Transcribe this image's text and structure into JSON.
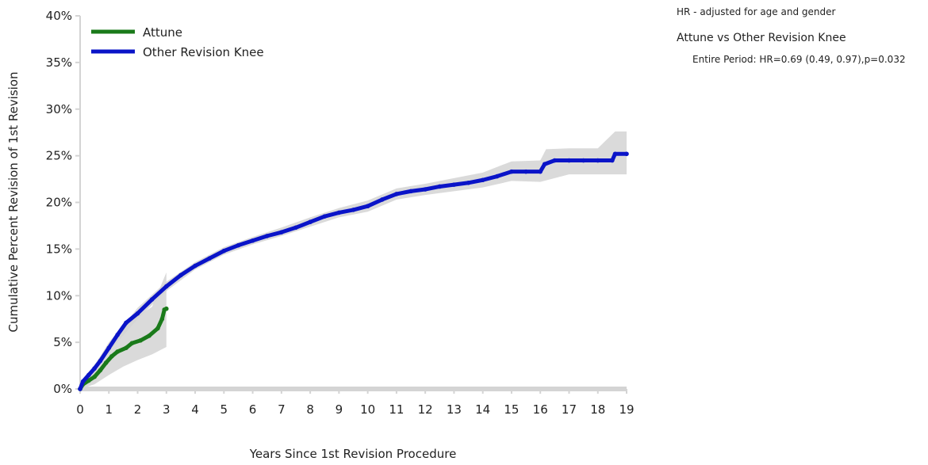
{
  "notes": {
    "adjustment": "HR - adjusted for age and gender",
    "comparison": "Attune vs Other Revision Knee",
    "hazard_ratio": "Entire Period: HR=0.69 (0.49, 0.97),p=0.032"
  },
  "colors": {
    "attune": "#1a7a1a",
    "other": "#0a14c8",
    "ci_band": "#d4d4d4",
    "axis": "#d4d4d4"
  },
  "chart_data": {
    "type": "line",
    "xlabel": "Years Since 1st Revision Procedure",
    "ylabel": "Cumulative Percent Revision of 1st Revision",
    "xlim": [
      0,
      19
    ],
    "ylim": [
      0,
      40
    ],
    "x_ticks": [
      "0",
      "1",
      "2",
      "3",
      "4",
      "5",
      "6",
      "7",
      "8",
      "9",
      "10",
      "11",
      "12",
      "13",
      "14",
      "15",
      "16",
      "17",
      "18",
      "19"
    ],
    "y_ticks": [
      "0%",
      "5%",
      "10%",
      "15%",
      "20%",
      "25%",
      "30%",
      "35%",
      "40%"
    ],
    "legend_position": "top-left",
    "series": [
      {
        "name": "Attune",
        "color_key": "attune",
        "points": [
          [
            0,
            0
          ],
          [
            0.1,
            0.5
          ],
          [
            0.3,
            0.9
          ],
          [
            0.5,
            1.3
          ],
          [
            0.7,
            2.0
          ],
          [
            0.9,
            2.8
          ],
          [
            1.1,
            3.5
          ],
          [
            1.3,
            4.0
          ],
          [
            1.6,
            4.4
          ],
          [
            1.8,
            4.9
          ],
          [
            2.1,
            5.2
          ],
          [
            2.4,
            5.7
          ],
          [
            2.7,
            6.5
          ],
          [
            2.85,
            7.5
          ],
          [
            2.93,
            8.5
          ],
          [
            3.0,
            8.6
          ]
        ],
        "ci_lower": [
          [
            0,
            0
          ],
          [
            0.5,
            0.5
          ],
          [
            1.0,
            1.5
          ],
          [
            1.5,
            2.4
          ],
          [
            2.0,
            3.1
          ],
          [
            2.5,
            3.7
          ],
          [
            3.0,
            4.5
          ]
        ],
        "ci_upper": [
          [
            0,
            0.3
          ],
          [
            0.5,
            2.5
          ],
          [
            1.0,
            5.0
          ],
          [
            1.5,
            6.8
          ],
          [
            2.0,
            7.8
          ],
          [
            2.5,
            8.8
          ],
          [
            3.0,
            12.5
          ]
        ]
      },
      {
        "name": "Other Revision Knee",
        "color_key": "other",
        "points": [
          [
            0,
            0
          ],
          [
            0.1,
            0.8
          ],
          [
            0.3,
            1.5
          ],
          [
            0.5,
            2.2
          ],
          [
            0.7,
            3.0
          ],
          [
            1.0,
            4.4
          ],
          [
            1.3,
            5.8
          ],
          [
            1.6,
            7.1
          ],
          [
            2.0,
            8.1
          ],
          [
            2.5,
            9.6
          ],
          [
            3.0,
            11.0
          ],
          [
            3.5,
            12.2
          ],
          [
            4.0,
            13.2
          ],
          [
            4.5,
            14.0
          ],
          [
            5.0,
            14.8
          ],
          [
            5.5,
            15.4
          ],
          [
            6.0,
            15.9
          ],
          [
            6.5,
            16.4
          ],
          [
            7.0,
            16.8
          ],
          [
            7.5,
            17.3
          ],
          [
            8.0,
            17.9
          ],
          [
            8.5,
            18.5
          ],
          [
            9.0,
            18.9
          ],
          [
            9.5,
            19.2
          ],
          [
            10.0,
            19.6
          ],
          [
            10.5,
            20.3
          ],
          [
            11.0,
            20.9
          ],
          [
            11.5,
            21.2
          ],
          [
            12.0,
            21.4
          ],
          [
            12.5,
            21.7
          ],
          [
            13.0,
            21.9
          ],
          [
            13.5,
            22.1
          ],
          [
            14.0,
            22.4
          ],
          [
            14.5,
            22.8
          ],
          [
            15.0,
            23.3
          ],
          [
            15.5,
            23.3
          ],
          [
            16.0,
            23.3
          ],
          [
            16.15,
            24.1
          ],
          [
            16.5,
            24.5
          ],
          [
            17.0,
            24.5
          ],
          [
            17.5,
            24.5
          ],
          [
            18.0,
            24.5
          ],
          [
            18.5,
            24.5
          ],
          [
            18.6,
            25.2
          ],
          [
            19.0,
            25.2
          ]
        ],
        "ci_lower": [
          [
            0,
            0
          ],
          [
            1.0,
            4.0
          ],
          [
            2.0,
            7.5
          ],
          [
            3.0,
            10.5
          ],
          [
            4.0,
            12.8
          ],
          [
            5.0,
            14.4
          ],
          [
            6.0,
            15.5
          ],
          [
            7.0,
            16.4
          ],
          [
            8.0,
            17.4
          ],
          [
            9.0,
            18.4
          ],
          [
            10.0,
            19.0
          ],
          [
            11.0,
            20.3
          ],
          [
            12.0,
            20.8
          ],
          [
            13.0,
            21.2
          ],
          [
            14.0,
            21.6
          ],
          [
            15.0,
            22.3
          ],
          [
            16.0,
            22.2
          ],
          [
            17.0,
            23.0
          ],
          [
            18.0,
            23.0
          ],
          [
            18.6,
            23.0
          ],
          [
            19.0,
            23.0
          ]
        ],
        "ci_upper": [
          [
            0,
            0.4
          ],
          [
            1.0,
            4.8
          ],
          [
            2.0,
            8.7
          ],
          [
            3.0,
            11.5
          ],
          [
            4.0,
            13.6
          ],
          [
            5.0,
            15.2
          ],
          [
            6.0,
            16.3
          ],
          [
            7.0,
            17.3
          ],
          [
            8.0,
            18.4
          ],
          [
            9.0,
            19.4
          ],
          [
            10.0,
            20.2
          ],
          [
            11.0,
            21.5
          ],
          [
            12.0,
            22.0
          ],
          [
            13.0,
            22.6
          ],
          [
            14.0,
            23.2
          ],
          [
            15.0,
            24.4
          ],
          [
            16.0,
            24.5
          ],
          [
            16.2,
            25.7
          ],
          [
            17.0,
            25.8
          ],
          [
            18.0,
            25.8
          ],
          [
            18.6,
            27.6
          ],
          [
            19.0,
            27.6
          ]
        ]
      }
    ]
  }
}
